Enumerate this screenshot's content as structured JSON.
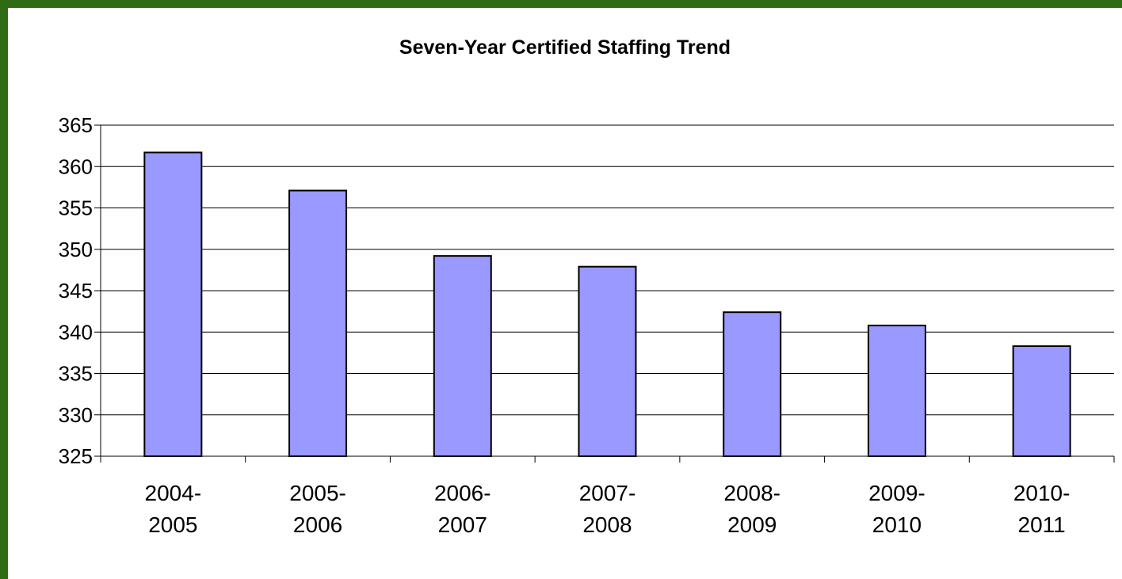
{
  "chart_data": {
    "type": "bar",
    "title": "Seven-Year Certified Staffing Trend",
    "xlabel": "",
    "ylabel": "",
    "categories": [
      [
        "2004-",
        "2005"
      ],
      [
        "2005-",
        "2006"
      ],
      [
        "2006-",
        "2007"
      ],
      [
        "2007-",
        "2008"
      ],
      [
        "2008-",
        "2009"
      ],
      [
        "2009-",
        "2010"
      ],
      [
        "2010-",
        "2011"
      ]
    ],
    "values": [
      361.7,
      357.1,
      349.2,
      347.9,
      342.4,
      340.8,
      338.3
    ],
    "ylim": [
      325,
      365
    ],
    "yticks": [
      365,
      360,
      355,
      350,
      345,
      340,
      335,
      330,
      325
    ],
    "grid": true,
    "legend": "none",
    "bar_color": "#9999ff",
    "frame_color": "#2f6b14"
  }
}
